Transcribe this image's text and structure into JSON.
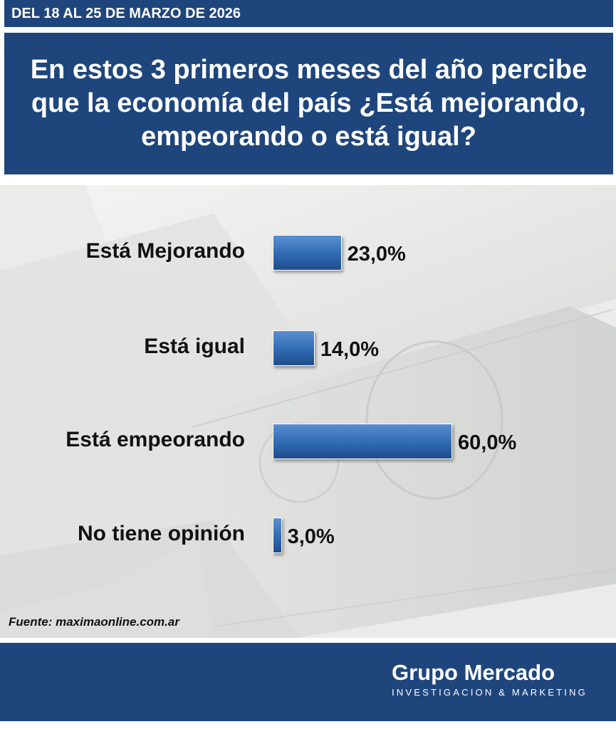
{
  "header": {
    "date_range": "DEL 18 AL 25 DE MARZO DE 2026",
    "question": "En estos 3 primeros meses del año percibe que la economía del país ¿Está mejorando, empeorando o está igual?"
  },
  "chart_data": {
    "type": "bar",
    "orientation": "horizontal",
    "categories": [
      "Está Mejorando",
      "Está igual",
      "Está empeorando",
      "No tiene opinión"
    ],
    "values": [
      23.0,
      14.0,
      60.0,
      3.0
    ],
    "value_labels": [
      "23,0%",
      "14,0%",
      "60,0%",
      "3,0%"
    ],
    "xlim": [
      0,
      100
    ],
    "grid": false,
    "bar_color": "#2f6ab3"
  },
  "footer": {
    "source": "Fuente: maximaonline.com.ar",
    "brand_name": "Grupo Mercado",
    "brand_tagline": "INVESTIGACION & MARKETING"
  },
  "colors": {
    "header_bg": "#1f467c",
    "footer_bg": "#1f467c",
    "background": "#ecedec"
  }
}
